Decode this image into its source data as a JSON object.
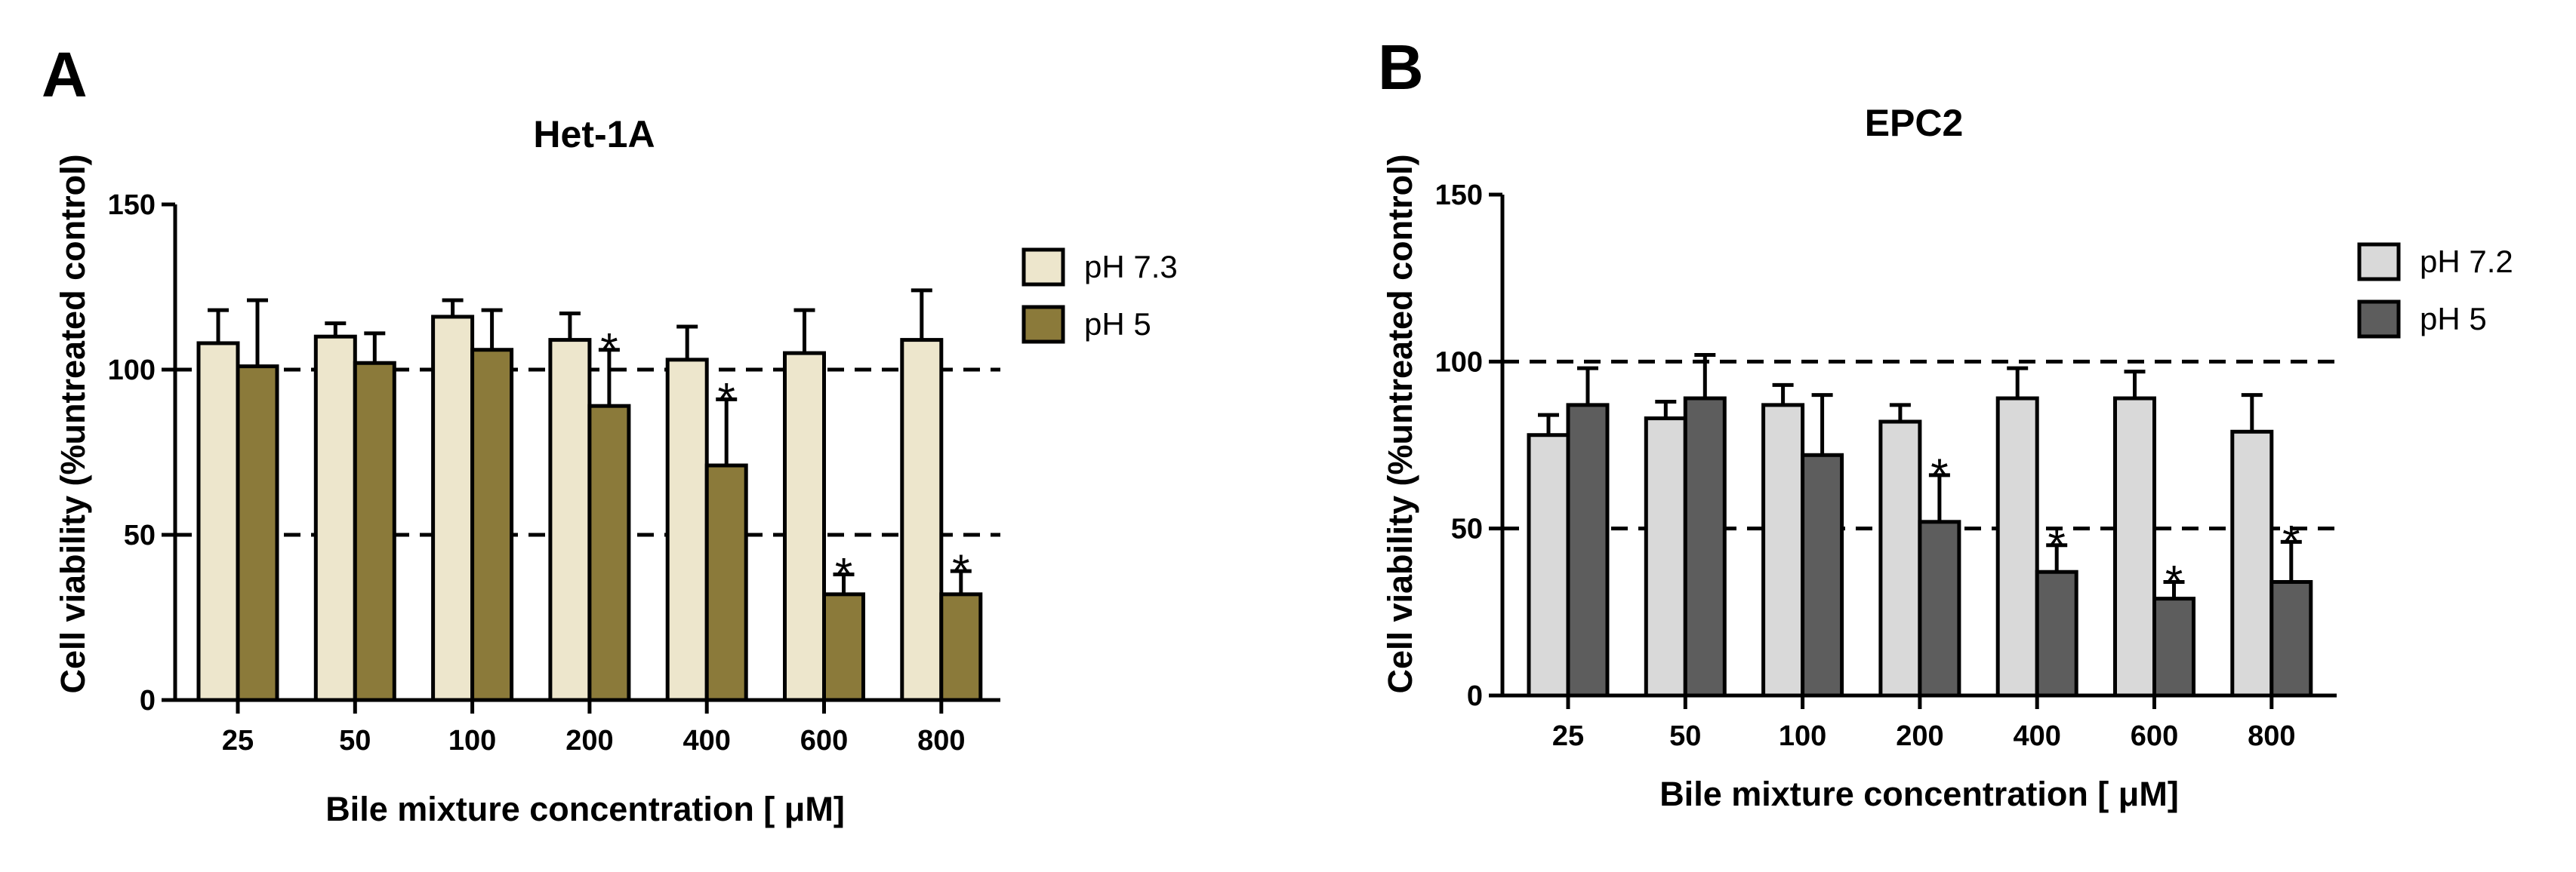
{
  "chart_data": [
    {
      "type": "bar",
      "panel": "A",
      "title": "Het-1A",
      "xlabel": "Bile mixture concentration [ μM]",
      "ylabel": "Cell viability (%untreated control)",
      "categories": [
        "25",
        "50",
        "100",
        "200",
        "400",
        "600",
        "800"
      ],
      "ylim": [
        0,
        150
      ],
      "yticks": [
        0,
        50,
        100,
        150
      ],
      "reference_lines": [
        50,
        100
      ],
      "legend_position": "right",
      "series": [
        {
          "name": "pH 7.3",
          "color": "#ede6cc",
          "values": [
            108,
            110,
            116,
            109,
            103,
            105,
            109
          ],
          "errors": [
            10,
            4,
            5,
            8,
            10,
            13,
            15
          ]
        },
        {
          "name": "pH 5",
          "color": "#8b7a3a",
          "values": [
            101,
            102,
            106,
            89,
            71,
            32,
            32
          ],
          "errors": [
            20,
            9,
            12,
            17,
            20,
            6,
            7
          ]
        }
      ],
      "significance": {
        "marker": "*",
        "series": "pH 5",
        "categories": [
          "200",
          "400",
          "600",
          "800"
        ]
      }
    },
    {
      "type": "bar",
      "panel": "B",
      "title": "EPC2",
      "xlabel": "Bile mixture concentration [ μM]",
      "ylabel": "Cell viability (%untreated control)",
      "categories": [
        "25",
        "50",
        "100",
        "200",
        "400",
        "600",
        "800"
      ],
      "ylim": [
        0,
        150
      ],
      "yticks": [
        0,
        50,
        100,
        150
      ],
      "reference_lines": [
        50,
        100
      ],
      "legend_position": "right",
      "series": [
        {
          "name": "pH 7.2",
          "color": "#d9d9d9",
          "values": [
            78,
            83,
            87,
            82,
            89,
            89,
            79
          ],
          "errors": [
            6,
            5,
            6,
            5,
            9,
            8,
            11
          ]
        },
        {
          "name": "pH 5",
          "color": "#5d5d5d",
          "values": [
            87,
            89,
            72,
            52,
            37,
            29,
            34
          ],
          "errors": [
            11,
            13,
            18,
            14,
            8,
            5,
            12
          ]
        }
      ],
      "significance": {
        "marker": "*",
        "series": "pH 5",
        "categories": [
          "200",
          "400",
          "600",
          "800"
        ]
      }
    }
  ]
}
